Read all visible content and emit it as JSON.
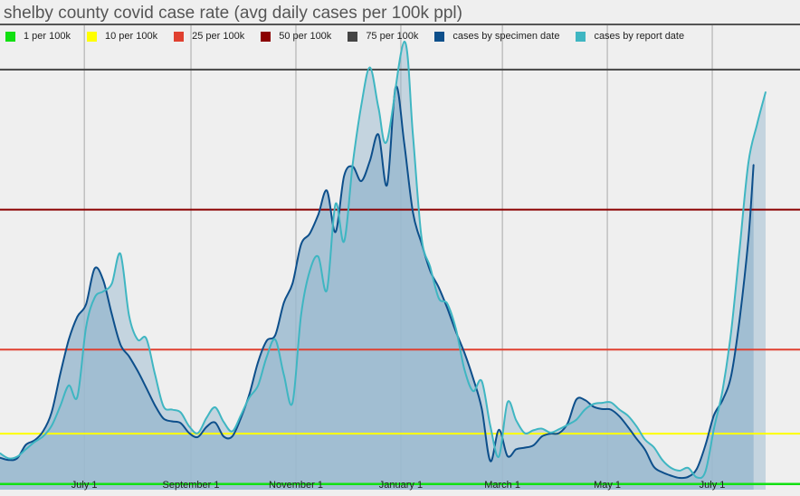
{
  "title": "shelby county covid case rate (avg daily cases per 100k ppl)",
  "colors": {
    "background": "#efefef",
    "area_fill": "#9ab9cf",
    "specimen_line": "#0d4f8b",
    "report_line": "#3fb6c2",
    "gridline": "#a8a8a8"
  },
  "legend": [
    {
      "label": "1 per 100k",
      "color": "#12e012"
    },
    {
      "label": "10 per 100k",
      "color": "#ffff00"
    },
    {
      "label": "25 per 100k",
      "color": "#e04030"
    },
    {
      "label": "50 per 100k",
      "color": "#8b0000"
    },
    {
      "label": "75 per 100k",
      "color": "#444444"
    },
    {
      "label": "cases by specimen date",
      "color": "#0d4f8b"
    },
    {
      "label": "cases by report date",
      "color": "#3fb6c2"
    }
  ],
  "chart_data": {
    "type": "line",
    "title": "shelby county covid case rate (avg daily cases per 100k ppl)",
    "xlabel": "",
    "ylabel": "",
    "x_ticks": [
      "July 1",
      "September 1",
      "November 1",
      "January 1",
      "March 1",
      "May 1",
      "July 1"
    ],
    "x_range": [
      "2020-05-13",
      "2021-08-21"
    ],
    "ylim": [
      0,
      80
    ],
    "grid": "vertical",
    "legend_position": "top",
    "reference_lines": [
      {
        "name": "1 per 100k",
        "value": 1,
        "color": "#12e012"
      },
      {
        "name": "10 per 100k",
        "value": 10,
        "color": "#ffff00"
      },
      {
        "name": "25 per 100k",
        "value": 25,
        "color": "#e04030"
      },
      {
        "name": "50 per 100k",
        "value": 50,
        "color": "#8b0000"
      },
      {
        "name": "75 per 100k",
        "value": 75,
        "color": "#444444"
      }
    ],
    "series": [
      {
        "name": "cases by specimen date",
        "color": "#0d4f8b",
        "points": [
          [
            "2020-05-13",
            5.7
          ],
          [
            "2020-05-18",
            5.3
          ],
          [
            "2020-05-23",
            5.6
          ],
          [
            "2020-05-28",
            8.0
          ],
          [
            "2020-06-02",
            8.8
          ],
          [
            "2020-06-07",
            10.4
          ],
          [
            "2020-06-12",
            13.8
          ],
          [
            "2020-06-17",
            20.6
          ],
          [
            "2020-06-22",
            26.8
          ],
          [
            "2020-06-27",
            30.9
          ],
          [
            "2020-07-02",
            33.1
          ],
          [
            "2020-07-07",
            39.5
          ],
          [
            "2020-07-12",
            37.4
          ],
          [
            "2020-07-17",
            31.3
          ],
          [
            "2020-07-22",
            25.9
          ],
          [
            "2020-07-27",
            23.8
          ],
          [
            "2020-08-01",
            21.2
          ],
          [
            "2020-08-06",
            18.2
          ],
          [
            "2020-08-11",
            15.1
          ],
          [
            "2020-08-16",
            12.7
          ],
          [
            "2020-08-21",
            12.2
          ],
          [
            "2020-08-26",
            11.9
          ],
          [
            "2020-08-31",
            10.1
          ],
          [
            "2020-09-05",
            9.4
          ],
          [
            "2020-09-10",
            11.2
          ],
          [
            "2020-09-15",
            12.0
          ],
          [
            "2020-09-20",
            9.5
          ],
          [
            "2020-09-25",
            9.5
          ],
          [
            "2020-09-30",
            12.8
          ],
          [
            "2020-10-05",
            17.1
          ],
          [
            "2020-10-10",
            22.8
          ],
          [
            "2020-10-15",
            26.6
          ],
          [
            "2020-10-20",
            27.6
          ],
          [
            "2020-10-25",
            33.4
          ],
          [
            "2020-10-30",
            36.8
          ],
          [
            "2020-11-04",
            43.8
          ],
          [
            "2020-11-09",
            45.7
          ],
          [
            "2020-11-14",
            49.1
          ],
          [
            "2020-11-19",
            53.4
          ],
          [
            "2020-11-24",
            46.0
          ],
          [
            "2020-11-29",
            56.0
          ],
          [
            "2020-12-04",
            57.7
          ],
          [
            "2020-12-09",
            55.1
          ],
          [
            "2020-12-14",
            58.7
          ],
          [
            "2020-12-19",
            63.4
          ],
          [
            "2020-12-24",
            54.4
          ],
          [
            "2020-12-29",
            71.9
          ],
          [
            "2021-01-03",
            61.7
          ],
          [
            "2021-01-08",
            49.5
          ],
          [
            "2021-01-13",
            44.0
          ],
          [
            "2021-01-18",
            39.1
          ],
          [
            "2021-01-23",
            36.1
          ],
          [
            "2021-01-28",
            32.4
          ],
          [
            "2021-02-02",
            28.2
          ],
          [
            "2021-02-07",
            24.4
          ],
          [
            "2021-02-12",
            19.9
          ],
          [
            "2021-02-17",
            14.5
          ],
          [
            "2021-02-22",
            5.1
          ],
          [
            "2021-02-27",
            10.7
          ],
          [
            "2021-03-04",
            6.0
          ],
          [
            "2021-03-09",
            7.2
          ],
          [
            "2021-03-14",
            7.5
          ],
          [
            "2021-03-19",
            7.9
          ],
          [
            "2021-03-24",
            9.5
          ],
          [
            "2021-03-29",
            10.0
          ],
          [
            "2021-04-03",
            10.1
          ],
          [
            "2021-04-08",
            11.9
          ],
          [
            "2021-04-13",
            16.1
          ],
          [
            "2021-04-18",
            16.0
          ],
          [
            "2021-04-23",
            14.8
          ],
          [
            "2021-04-28",
            14.4
          ],
          [
            "2021-05-03",
            14.3
          ],
          [
            "2021-05-08",
            13.1
          ],
          [
            "2021-05-13",
            11.2
          ],
          [
            "2021-05-18",
            9.1
          ],
          [
            "2021-05-23",
            7.1
          ],
          [
            "2021-05-28",
            4.1
          ],
          [
            "2021-06-02",
            3.1
          ],
          [
            "2021-06-07",
            2.5
          ],
          [
            "2021-06-12",
            2.1
          ],
          [
            "2021-06-17",
            2.3
          ],
          [
            "2021-06-22",
            3.7
          ],
          [
            "2021-06-27",
            7.9
          ],
          [
            "2021-07-02",
            13.3
          ],
          [
            "2021-07-07",
            16.0
          ],
          [
            "2021-07-12",
            20.4
          ],
          [
            "2021-07-17",
            30.7
          ],
          [
            "2021-07-22",
            44.8
          ],
          [
            "2021-07-25",
            58.0
          ]
        ]
      },
      {
        "name": "cases by report date",
        "color": "#3fb6c2",
        "points": [
          [
            "2020-05-13",
            6.5
          ],
          [
            "2020-05-18",
            5.6
          ],
          [
            "2020-05-23",
            5.9
          ],
          [
            "2020-05-28",
            7.2
          ],
          [
            "2020-06-02",
            8.5
          ],
          [
            "2020-06-07",
            9.5
          ],
          [
            "2020-06-12",
            11.4
          ],
          [
            "2020-06-17",
            14.9
          ],
          [
            "2020-06-22",
            18.6
          ],
          [
            "2020-06-27",
            16.6
          ],
          [
            "2020-07-02",
            29.0
          ],
          [
            "2020-07-07",
            34.3
          ],
          [
            "2020-07-12",
            35.4
          ],
          [
            "2020-07-17",
            36.8
          ],
          [
            "2020-07-22",
            42.1
          ],
          [
            "2020-07-27",
            31.1
          ],
          [
            "2020-08-01",
            26.8
          ],
          [
            "2020-08-06",
            27.0
          ],
          [
            "2020-08-11",
            20.7
          ],
          [
            "2020-08-16",
            14.9
          ],
          [
            "2020-08-21",
            14.3
          ],
          [
            "2020-08-26",
            13.8
          ],
          [
            "2020-08-31",
            11.3
          ],
          [
            "2020-09-05",
            10.1
          ],
          [
            "2020-09-10",
            12.8
          ],
          [
            "2020-09-15",
            14.7
          ],
          [
            "2020-09-20",
            12.1
          ],
          [
            "2020-09-25",
            10.4
          ],
          [
            "2020-09-30",
            13.3
          ],
          [
            "2020-10-05",
            16.5
          ],
          [
            "2020-10-10",
            18.6
          ],
          [
            "2020-10-15",
            23.7
          ],
          [
            "2020-10-20",
            26.8
          ],
          [
            "2020-10-25",
            20.5
          ],
          [
            "2020-10-30",
            15.5
          ],
          [
            "2020-11-04",
            31.2
          ],
          [
            "2020-11-09",
            39.0
          ],
          [
            "2020-11-14",
            41.6
          ],
          [
            "2020-11-19",
            35.6
          ],
          [
            "2020-11-24",
            51.0
          ],
          [
            "2020-11-29",
            44.3
          ],
          [
            "2020-12-04",
            58.1
          ],
          [
            "2020-12-09",
            68.6
          ],
          [
            "2020-12-14",
            75.4
          ],
          [
            "2020-12-19",
            68.2
          ],
          [
            "2020-12-24",
            62.3
          ],
          [
            "2021-01-03",
            80.0
          ],
          [
            "2021-01-08",
            63.3
          ],
          [
            "2021-01-13",
            45.0
          ],
          [
            "2021-01-18",
            39.8
          ],
          [
            "2021-01-23",
            34.2
          ],
          [
            "2021-01-28",
            33.2
          ],
          [
            "2021-02-02",
            28.7
          ],
          [
            "2021-02-07",
            21.4
          ],
          [
            "2021-02-12",
            17.6
          ],
          [
            "2021-02-17",
            19.4
          ],
          [
            "2021-02-22",
            11.4
          ],
          [
            "2021-02-27",
            5.9
          ],
          [
            "2021-03-04",
            15.6
          ],
          [
            "2021-03-09",
            12.4
          ],
          [
            "2021-03-14",
            10.1
          ],
          [
            "2021-03-19",
            10.6
          ],
          [
            "2021-03-24",
            10.9
          ],
          [
            "2021-03-29",
            10.2
          ],
          [
            "2021-04-03",
            10.8
          ],
          [
            "2021-04-08",
            11.6
          ],
          [
            "2021-04-13",
            12.5
          ],
          [
            "2021-04-18",
            14.3
          ],
          [
            "2021-04-23",
            15.3
          ],
          [
            "2021-04-28",
            15.5
          ],
          [
            "2021-05-03",
            15.6
          ],
          [
            "2021-05-08",
            14.3
          ],
          [
            "2021-05-13",
            13.2
          ],
          [
            "2021-05-18",
            11.3
          ],
          [
            "2021-05-23",
            8.9
          ],
          [
            "2021-05-28",
            7.6
          ],
          [
            "2021-06-02",
            5.3
          ],
          [
            "2021-06-07",
            3.9
          ],
          [
            "2021-06-12",
            3.4
          ],
          [
            "2021-06-17",
            3.9
          ],
          [
            "2021-06-22",
            2.2
          ],
          [
            "2021-06-27",
            3.2
          ],
          [
            "2021-07-02",
            10.9
          ],
          [
            "2021-07-07",
            17.8
          ],
          [
            "2021-07-12",
            28.3
          ],
          [
            "2021-07-17",
            43.3
          ],
          [
            "2021-07-22",
            58.4
          ],
          [
            "2021-07-27",
            65.2
          ],
          [
            "2021-08-01",
            71.0
          ]
        ]
      }
    ]
  }
}
